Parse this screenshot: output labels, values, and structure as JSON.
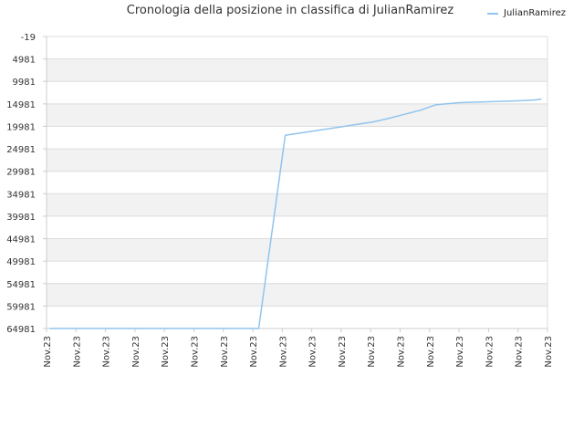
{
  "title": "Cronologia della posizione in classifica di JulianRamirez",
  "legend": {
    "label": "JulianRamirez"
  },
  "colors": {
    "line": "#90c4ef",
    "band": "#f2f2f2",
    "grid": "#dcdcdc",
    "text": "#333333"
  },
  "chart_data": {
    "type": "line",
    "title": "Cronologia della posizione in classifica di JulianRamirez",
    "xlabel": "",
    "ylabel": "",
    "y_inverted": true,
    "ylim": [
      -19,
      64981
    ],
    "y_ticks": [
      -19,
      4981,
      9981,
      14981,
      19981,
      24981,
      29981,
      34981,
      39981,
      44981,
      49981,
      54981,
      59981,
      64981
    ],
    "x_tick_labels": [
      "Nov.23",
      "Nov.23",
      "Nov.23",
      "Nov.23",
      "Nov.23",
      "Nov.23",
      "Nov.23",
      "Nov.23",
      "Nov.23",
      "Nov.23",
      "Nov.23",
      "Nov.23",
      "Nov.23",
      "Nov.23",
      "Nov.23",
      "Nov.23",
      "Nov.23",
      "Nov.23"
    ],
    "grid": true,
    "legend_position": "top-right",
    "series": [
      {
        "name": "JulianRamirez",
        "points": [
          {
            "x": 0.1,
            "y": 64981
          },
          {
            "x": 7.2,
            "y": 64981
          },
          {
            "x": 8.1,
            "y": 21980
          },
          {
            "x": 9.1,
            "y": 20980
          },
          {
            "x": 10.1,
            "y": 19981
          },
          {
            "x": 11.1,
            "y": 18980
          },
          {
            "x": 11.5,
            "y": 18380
          },
          {
            "x": 12.2,
            "y": 17200
          },
          {
            "x": 12.7,
            "y": 16380
          },
          {
            "x": 13.2,
            "y": 15200
          },
          {
            "x": 14.0,
            "y": 14700
          },
          {
            "x": 15.0,
            "y": 14500
          },
          {
            "x": 16.0,
            "y": 14300
          },
          {
            "x": 16.6,
            "y": 14100
          },
          {
            "x": 16.8,
            "y": 13900
          }
        ]
      }
    ]
  }
}
